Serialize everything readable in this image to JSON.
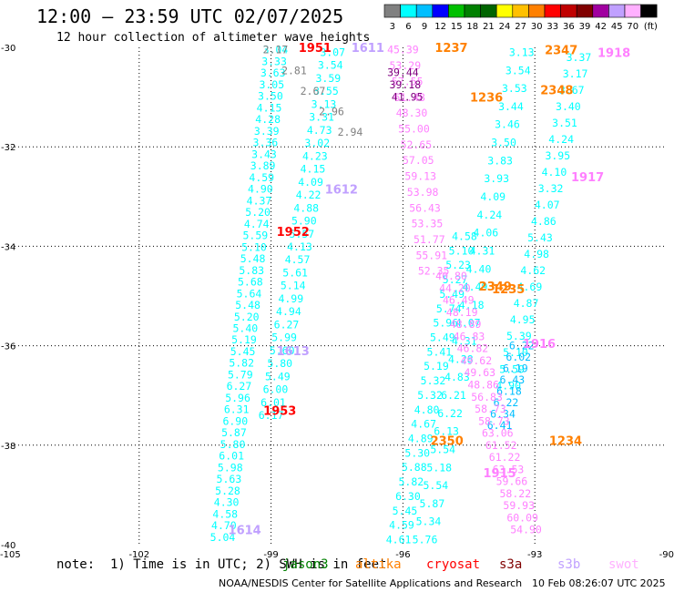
{
  "header": {
    "title": "12:00 – 23:59 UTC 02/07/2025",
    "subtitle": "12 hour collection of altimeter wave heights"
  },
  "colorbar": {
    "labels": [
      "3",
      "6",
      "9",
      "12",
      "15",
      "18",
      "21",
      "24",
      "27",
      "30",
      "33",
      "36",
      "39",
      "42",
      "45",
      "70",
      "(ft)"
    ],
    "colors": [
      "#808080",
      "#00ffff",
      "#00bfff",
      "#0000ff",
      "#00c000",
      "#008000",
      "#006400",
      "#ffff00",
      "#ffc000",
      "#ff8000",
      "#ff0000",
      "#c00000",
      "#800000",
      "#a000a0",
      "#c0a0ff",
      "#ffb0ff",
      "#000000"
    ]
  },
  "footer": {
    "note": "note:  1) Time is in UTC; 2) SWH is in feet",
    "credit": "NOAA/NESDIS Center for Satellite Applications and Research",
    "stamp": "10 Feb 08:26:07 UTC 2025"
  },
  "satellites": [
    {
      "name": "jason3",
      "color": "#008000"
    },
    {
      "name": "altika",
      "color": "#ff8000"
    },
    {
      "name": "cryosat",
      "color": "#ff0000"
    },
    {
      "name": "s3a",
      "color": "#800000"
    },
    {
      "name": "s3b",
      "color": "#c0a0ff"
    },
    {
      "name": "swot",
      "color": "#ffb0ff"
    }
  ],
  "chart_data": {
    "type": "scatter",
    "title": "12:00 – 23:59 UTC 02/07/2025",
    "subtitle": "12 hour collection of altimeter wave heights",
    "xlim": [
      -105,
      -90
    ],
    "ylim": [
      -40,
      -30
    ],
    "x_ticks": [
      "-105",
      "-102",
      "-99",
      "-96",
      "-93",
      "-90"
    ],
    "y_ticks": [
      "-30",
      "-32",
      "-34",
      "-36",
      "-38",
      "-40"
    ],
    "grid": true,
    "tracks": [
      {
        "color": "#00ffff",
        "lat0": -30.05,
        "lat1": -39.85,
        "lon0": -98.9,
        "lon1": -100.1,
        "values": [
          "3.04",
          "3.33",
          "3.63",
          "3.05",
          "3.50",
          "4.15",
          "4.28",
          "3.39",
          "3.36",
          "3.43",
          "3.89",
          "4.59",
          "4.90",
          "4.37",
          "5.20",
          "4.74",
          "5.59",
          "5.10",
          "5.48",
          "5.83",
          "5.68",
          "5.64",
          "5.48",
          "5.20",
          "5.40",
          "5.19",
          "5.45",
          "5.82",
          "5.79",
          "6.27",
          "5.96",
          "6.31",
          "6.90",
          "5.87",
          "5.80",
          "6.01",
          "5.98",
          "5.63",
          "5.28",
          "4.30",
          "4.58",
          "4.70",
          "5.04"
        ]
      },
      {
        "color": "#00ffff",
        "lat0": -30.1,
        "lat1": -37.4,
        "lon0": -97.6,
        "lon1": -99.0,
        "values": [
          "3.07",
          "3.54",
          "3.59",
          "3.55",
          "3.13",
          "3.31",
          "4.73",
          "3.02",
          "4.23",
          "4.15",
          "4.09",
          "4.22",
          "4.88",
          "5.90",
          "5.57",
          "4.13",
          "4.57",
          "5.61",
          "5.14",
          "4.99",
          "4.94",
          "6.27",
          "5.99",
          "5.60",
          "5.80",
          "5.49",
          "6.00",
          "6.01",
          "6.17"
        ]
      },
      {
        "color": "#00ffff",
        "lat0": -33.8,
        "lat1": -39.9,
        "lon0": -94.6,
        "lon1": -96.1,
        "values": [
          "4.58",
          "5.10",
          "5.23",
          "5.27",
          "5.49",
          "5.74",
          "5.96",
          "5.49",
          "5.41",
          "5.19",
          "5.32",
          "5.32",
          "4.80",
          "4.67",
          "4.89",
          "5.30",
          "5.88",
          "5.82",
          "6.30",
          "5.45",
          "4.59",
          "4.61"
        ]
      },
      {
        "color": "#00ffff",
        "lat0": -30.1,
        "lat1": -39.9,
        "lon0": -93.3,
        "lon1": -95.5,
        "values": [
          "3.13",
          "3.54",
          "3.53",
          "3.44",
          "3.46",
          "3.50",
          "3.83",
          "3.93",
          "4.09",
          "4.24",
          "4.06",
          "4.31",
          "4.40",
          "4.49",
          "4.18",
          "4.07",
          "4.31",
          "4.28",
          "4.83",
          "6.21",
          "6.22",
          "6.13",
          "5.54",
          "5.18",
          "5.54",
          "5.87",
          "5.34",
          "5.76"
        ]
      },
      {
        "color": "#00ffff",
        "lat0": -30.2,
        "lat1": -36.8,
        "lon0": -92.0,
        "lon1": -93.6,
        "values": [
          "3.37",
          "3.17",
          "3.67",
          "3.40",
          "3.51",
          "4.24",
          "3.95",
          "4.10",
          "3.32",
          "4.07",
          "4.86",
          "5.43",
          "4.98",
          "4.62",
          "4.69",
          "4.87",
          "4.95",
          "5.39",
          "5.10",
          "5.59",
          "4.90"
        ]
      },
      {
        "color": "#00bfff",
        "lat0": -36.0,
        "lat1": -37.6,
        "lon0": -93.3,
        "lon1": -93.8,
        "values": [
          "6.22",
          "6.02",
          "6.19",
          "6.43",
          "6.18",
          "6.22",
          "6.34",
          "6.41"
        ]
      },
      {
        "color": "#808080",
        "lat0": -30.05,
        "lat1": -31.7,
        "lon0": -98.9,
        "lon1": -97.2,
        "values": [
          "2.17",
          "2.81",
          "2.67",
          "2.96",
          "2.94"
        ]
      },
      {
        "color": "#ff80ff",
        "lat0": -30.05,
        "lat1": -34.5,
        "lon0": -96.0,
        "lon1": -95.3,
        "values": [
          "45.39",
          "53.29",
          "57.55",
          "61.48",
          "48.30",
          "55.00",
          "52.65",
          "57.05",
          "59.13",
          "53.98",
          "56.43",
          "53.35",
          "51.77",
          "55.91",
          "52.35"
        ]
      },
      {
        "color": "#800080",
        "lat0": -30.5,
        "lat1": -31.0,
        "lon0": -96.0,
        "lon1": -95.9,
        "values": [
          "39.44",
          "39.18",
          "41.95"
        ]
      },
      {
        "color": "#ff80ff",
        "lat0": -34.6,
        "lat1": -39.7,
        "lon0": -94.9,
        "lon1": -93.2,
        "values": [
          "40.80",
          "44.20",
          "46.49",
          "48.19",
          "48.89",
          "46.83",
          "46.82",
          "49.62",
          "49.63",
          "48.86",
          "56.83",
          "58.73",
          "58.73",
          "63.06",
          "61.52",
          "61.22",
          "63.53",
          "59.66",
          "58.22",
          "59.93",
          "60.09",
          "54.90"
        ]
      }
    ],
    "pass_labels": [
      {
        "text": "1951",
        "color": "#ff0000",
        "lat": -30.0,
        "lon": -98.0
      },
      {
        "text": "1611",
        "color": "#c0a0ff",
        "lat": -30.0,
        "lon": -96.8
      },
      {
        "text": "1237",
        "color": "#ff8000",
        "lat": -30.0,
        "lon": -94.9
      },
      {
        "text": "2347",
        "color": "#ff8000",
        "lat": -30.05,
        "lon": -92.4
      },
      {
        "text": "1918",
        "color": "#ff80ff",
        "lat": -30.1,
        "lon": -91.2
      },
      {
        "text": "2348",
        "color": "#ff8000",
        "lat": -30.85,
        "lon": -92.5
      },
      {
        "text": "1236",
        "color": "#ff8000",
        "lat": -31.0,
        "lon": -94.1
      },
      {
        "text": "1612",
        "color": "#c0a0ff",
        "lat": -32.85,
        "lon": -97.4
      },
      {
        "text": "1917",
        "color": "#ff80ff",
        "lat": -32.6,
        "lon": -91.8
      },
      {
        "text": "1952",
        "color": "#ff0000",
        "lat": -33.7,
        "lon": -98.5
      },
      {
        "text": "2349",
        "color": "#ff8000",
        "lat": -34.8,
        "lon": -93.9
      },
      {
        "text": "1235",
        "color": "#ff8000",
        "lat": -34.85,
        "lon": -93.6
      },
      {
        "text": "1916",
        "color": "#ff80ff",
        "lat": -35.95,
        "lon": -92.9
      },
      {
        "text": "1613",
        "color": "#c0a0ff",
        "lat": -36.1,
        "lon": -98.5
      },
      {
        "text": "1953",
        "color": "#ff0000",
        "lat": -37.3,
        "lon": -98.8
      },
      {
        "text": "2350",
        "color": "#ff8000",
        "lat": -37.9,
        "lon": -95.0
      },
      {
        "text": "1234",
        "color": "#ff8000",
        "lat": -37.9,
        "lon": -92.3
      },
      {
        "text": "1915",
        "color": "#ff80ff",
        "lat": -38.55,
        "lon": -93.8
      },
      {
        "text": "1614",
        "color": "#c0a0ff",
        "lat": -39.7,
        "lon": -99.6
      }
    ]
  }
}
